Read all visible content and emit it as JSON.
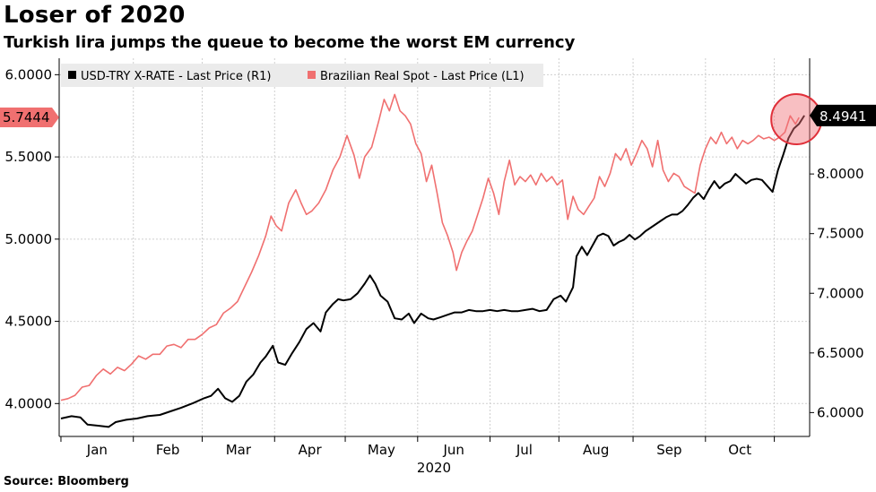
{
  "title": "Loser of 2020",
  "subtitle": "Turkish lira jumps the queue to become the worst EM currency",
  "source": "Source:  Bloomberg",
  "chart_data": {
    "type": "line",
    "xlabel": "2020",
    "x_ticks": [
      "Jan",
      "Feb",
      "Mar",
      "Apr",
      "May",
      "Jun",
      "Jul",
      "Aug",
      "Sep",
      "Oct"
    ],
    "y_left": {
      "ylim": [
        3.8,
        6.1
      ],
      "ticks": [
        "4.0000",
        "4.5000",
        "5.0000",
        "5.5000",
        "6.0000"
      ],
      "tick_values": [
        4.0,
        4.5,
        5.0,
        5.5,
        6.0
      ]
    },
    "y_right": {
      "ylim": [
        5.8,
        8.97
      ],
      "ticks": [
        "6.0000",
        "6.5000",
        "7.0000",
        "7.5000",
        "8.0000"
      ],
      "tick_values": [
        6.0,
        6.5,
        7.0,
        7.5,
        8.0
      ]
    },
    "grid": true,
    "legend_position": "top-left",
    "series": [
      {
        "name": "USD-TRY X-RATE - Last Price (R1)",
        "axis": "right",
        "color": "#000000",
        "last_label": "8.4941",
        "points": [
          [
            1,
            5.95
          ],
          [
            7,
            5.97
          ],
          [
            12,
            5.96
          ],
          [
            16,
            5.9
          ],
          [
            22,
            5.89
          ],
          [
            28,
            5.88
          ],
          [
            32,
            5.92
          ],
          [
            38,
            5.94
          ],
          [
            44,
            5.95
          ],
          [
            50,
            5.97
          ],
          [
            57,
            5.98
          ],
          [
            63,
            6.01
          ],
          [
            69,
            6.04
          ],
          [
            76,
            6.08
          ],
          [
            82,
            6.12
          ],
          [
            86,
            6.14
          ],
          [
            90,
            6.2
          ],
          [
            94,
            6.12
          ],
          [
            98,
            6.09
          ],
          [
            102,
            6.14
          ],
          [
            106,
            6.26
          ],
          [
            110,
            6.32
          ],
          [
            114,
            6.42
          ],
          [
            117,
            6.47
          ],
          [
            121,
            6.56
          ],
          [
            124,
            6.42
          ],
          [
            128,
            6.4
          ],
          [
            132,
            6.5
          ],
          [
            136,
            6.59
          ],
          [
            140,
            6.7
          ],
          [
            144,
            6.75
          ],
          [
            148,
            6.68
          ],
          [
            151,
            6.84
          ],
          [
            155,
            6.91
          ],
          [
            158,
            6.95
          ],
          [
            161,
            6.94
          ],
          [
            165,
            6.95
          ],
          [
            169,
            7.0
          ],
          [
            173,
            7.08
          ],
          [
            176,
            7.15
          ],
          [
            179,
            7.08
          ],
          [
            182,
            6.98
          ],
          [
            186,
            6.93
          ],
          [
            190,
            6.79
          ],
          [
            194,
            6.78
          ],
          [
            198,
            6.83
          ],
          [
            201,
            6.75
          ],
          [
            205,
            6.83
          ],
          [
            209,
            6.79
          ],
          [
            212,
            6.78
          ],
          [
            216,
            6.8
          ],
          [
            220,
            6.82
          ],
          [
            224,
            6.84
          ],
          [
            228,
            6.84
          ],
          [
            232,
            6.86
          ],
          [
            236,
            6.85
          ],
          [
            240,
            6.85
          ],
          [
            244,
            6.86
          ],
          [
            248,
            6.85
          ],
          [
            252,
            6.86
          ],
          [
            256,
            6.85
          ],
          [
            260,
            6.85
          ],
          [
            264,
            6.86
          ],
          [
            268,
            6.87
          ],
          [
            272,
            6.85
          ],
          [
            276,
            6.86
          ],
          [
            280,
            6.95
          ],
          [
            284,
            6.98
          ],
          [
            287,
            6.93
          ],
          [
            291,
            7.05
          ],
          [
            293,
            7.31
          ],
          [
            296,
            7.39
          ],
          [
            299,
            7.32
          ],
          [
            302,
            7.4
          ],
          [
            305,
            7.48
          ],
          [
            308,
            7.5
          ],
          [
            311,
            7.48
          ],
          [
            314,
            7.4
          ],
          [
            317,
            7.43
          ],
          [
            320,
            7.45
          ],
          [
            323,
            7.49
          ],
          [
            326,
            7.45
          ],
          [
            329,
            7.48
          ],
          [
            332,
            7.52
          ],
          [
            335,
            7.55
          ],
          [
            338,
            7.58
          ],
          [
            341,
            7.61
          ],
          [
            344,
            7.64
          ],
          [
            347,
            7.66
          ],
          [
            350,
            7.66
          ],
          [
            353,
            7.69
          ],
          [
            356,
            7.74
          ],
          [
            359,
            7.8
          ],
          [
            362,
            7.84
          ],
          [
            365,
            7.79
          ],
          [
            368,
            7.87
          ],
          [
            371,
            7.94
          ],
          [
            374,
            7.88
          ],
          [
            377,
            7.92
          ],
          [
            380,
            7.94
          ],
          [
            383,
            8.0
          ],
          [
            386,
            7.96
          ],
          [
            389,
            7.92
          ],
          [
            392,
            7.95
          ],
          [
            395,
            7.96
          ],
          [
            398,
            7.95
          ],
          [
            401,
            7.9
          ],
          [
            404,
            7.85
          ],
          [
            407,
            8.03
          ],
          [
            410,
            8.16
          ],
          [
            413,
            8.3
          ],
          [
            416,
            8.38
          ],
          [
            419,
            8.42
          ],
          [
            422,
            8.49
          ]
        ]
      },
      {
        "name": "Brazilian Real Spot - Last Price (L1)",
        "axis": "left",
        "color": "#f07070",
        "last_label": "5.7444",
        "points": [
          [
            1,
            4.02
          ],
          [
            5,
            4.03
          ],
          [
            9,
            4.05
          ],
          [
            13,
            4.1
          ],
          [
            17,
            4.11
          ],
          [
            21,
            4.17
          ],
          [
            25,
            4.21
          ],
          [
            29,
            4.18
          ],
          [
            33,
            4.22
          ],
          [
            37,
            4.2
          ],
          [
            41,
            4.24
          ],
          [
            45,
            4.29
          ],
          [
            49,
            4.27
          ],
          [
            53,
            4.3
          ],
          [
            57,
            4.3
          ],
          [
            61,
            4.35
          ],
          [
            65,
            4.36
          ],
          [
            69,
            4.34
          ],
          [
            73,
            4.39
          ],
          [
            77,
            4.39
          ],
          [
            81,
            4.42
          ],
          [
            85,
            4.46
          ],
          [
            89,
            4.48
          ],
          [
            93,
            4.55
          ],
          [
            97,
            4.58
          ],
          [
            101,
            4.62
          ],
          [
            105,
            4.71
          ],
          [
            109,
            4.8
          ],
          [
            113,
            4.9
          ],
          [
            117,
            5.02
          ],
          [
            120,
            5.14
          ],
          [
            123,
            5.08
          ],
          [
            126,
            5.05
          ],
          [
            130,
            5.22
          ],
          [
            134,
            5.3
          ],
          [
            137,
            5.22
          ],
          [
            140,
            5.15
          ],
          [
            143,
            5.17
          ],
          [
            147,
            5.22
          ],
          [
            151,
            5.3
          ],
          [
            155,
            5.42
          ],
          [
            159,
            5.5
          ],
          [
            163,
            5.63
          ],
          [
            167,
            5.51
          ],
          [
            170,
            5.37
          ],
          [
            173,
            5.5
          ],
          [
            177,
            5.56
          ],
          [
            181,
            5.72
          ],
          [
            184,
            5.85
          ],
          [
            187,
            5.78
          ],
          [
            190,
            5.88
          ],
          [
            193,
            5.78
          ],
          [
            196,
            5.75
          ],
          [
            199,
            5.7
          ],
          [
            202,
            5.58
          ],
          [
            205,
            5.52
          ],
          [
            208,
            5.35
          ],
          [
            211,
            5.45
          ],
          [
            214,
            5.28
          ],
          [
            217,
            5.1
          ],
          [
            220,
            5.02
          ],
          [
            223,
            4.92
          ],
          [
            225,
            4.81
          ],
          [
            228,
            4.92
          ],
          [
            231,
            4.99
          ],
          [
            234,
            5.05
          ],
          [
            237,
            5.15
          ],
          [
            240,
            5.25
          ],
          [
            243,
            5.37
          ],
          [
            246,
            5.28
          ],
          [
            249,
            5.15
          ],
          [
            252,
            5.35
          ],
          [
            255,
            5.48
          ],
          [
            258,
            5.33
          ],
          [
            261,
            5.38
          ],
          [
            264,
            5.35
          ],
          [
            267,
            5.39
          ],
          [
            270,
            5.33
          ],
          [
            273,
            5.4
          ],
          [
            276,
            5.35
          ],
          [
            279,
            5.38
          ],
          [
            282,
            5.33
          ],
          [
            285,
            5.36
          ],
          [
            288,
            5.12
          ],
          [
            291,
            5.26
          ],
          [
            294,
            5.18
          ],
          [
            297,
            5.15
          ],
          [
            300,
            5.2
          ],
          [
            303,
            5.25
          ],
          [
            306,
            5.38
          ],
          [
            309,
            5.32
          ],
          [
            312,
            5.4
          ],
          [
            315,
            5.52
          ],
          [
            318,
            5.48
          ],
          [
            321,
            5.55
          ],
          [
            324,
            5.45
          ],
          [
            327,
            5.52
          ],
          [
            330,
            5.6
          ],
          [
            333,
            5.55
          ],
          [
            336,
            5.44
          ],
          [
            339,
            5.6
          ],
          [
            342,
            5.42
          ],
          [
            345,
            5.35
          ],
          [
            348,
            5.4
          ],
          [
            351,
            5.38
          ],
          [
            354,
            5.32
          ],
          [
            357,
            5.3
          ],
          [
            360,
            5.28
          ],
          [
            363,
            5.45
          ],
          [
            366,
            5.55
          ],
          [
            369,
            5.62
          ],
          [
            372,
            5.58
          ],
          [
            375,
            5.65
          ],
          [
            378,
            5.58
          ],
          [
            381,
            5.62
          ],
          [
            384,
            5.55
          ],
          [
            387,
            5.6
          ],
          [
            390,
            5.58
          ],
          [
            393,
            5.6
          ],
          [
            396,
            5.63
          ],
          [
            399,
            5.61
          ],
          [
            402,
            5.62
          ],
          [
            405,
            5.6
          ],
          [
            408,
            5.62
          ],
          [
            411,
            5.65
          ],
          [
            414,
            5.75
          ],
          [
            417,
            5.7
          ],
          [
            419,
            5.74
          ]
        ]
      }
    ],
    "x_domain": [
      0,
      425
    ],
    "month_starts": [
      1,
      42,
      81,
      122,
      162,
      203,
      244,
      283,
      325,
      366,
      405
    ],
    "highlight": {
      "series_index": 1,
      "at_x": 419
    }
  }
}
